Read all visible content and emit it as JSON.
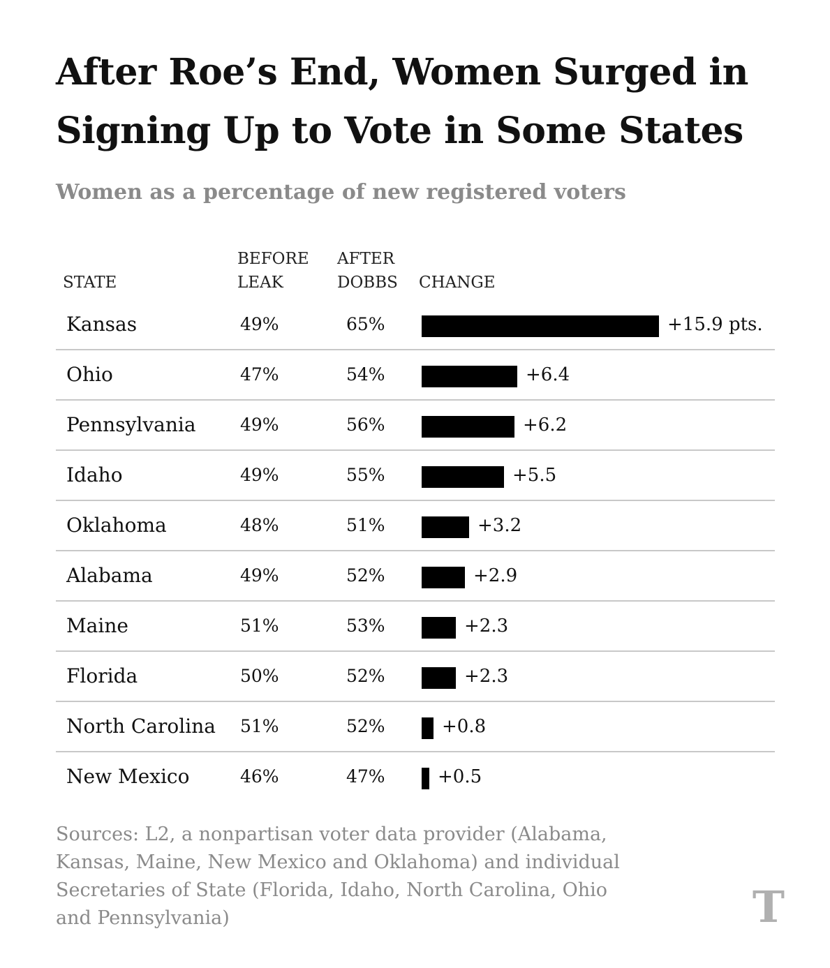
{
  "title_lines": [
    "After Roe’s End, Women Surged in",
    "Signing Up to Vote in Some States"
  ],
  "subtitle": "Women as a percentage of new registered voters",
  "headers": {
    "state": "STATE",
    "before": [
      "BEFORE",
      "LEAK"
    ],
    "after": [
      "AFTER",
      "DOBBS"
    ],
    "change": "CHANGE"
  },
  "chart_data": {
    "type": "table",
    "title": "After Roe’s End, Women Surged in Signing Up to Vote in Some States",
    "subtitle": "Women as a percentage of new registered voters",
    "columns": [
      "STATE",
      "BEFORE LEAK",
      "AFTER DOBBS",
      "CHANGE"
    ],
    "change_unit": "pts.",
    "rows": [
      {
        "state": "Kansas",
        "before": "49%",
        "after": "65%",
        "change": 15.9,
        "change_label": "+15.9 pts."
      },
      {
        "state": "Ohio",
        "before": "47%",
        "after": "54%",
        "change": 6.4,
        "change_label": "+6.4"
      },
      {
        "state": "Pennsylvania",
        "before": "49%",
        "after": "56%",
        "change": 6.2,
        "change_label": "+6.2"
      },
      {
        "state": "Idaho",
        "before": "49%",
        "after": "55%",
        "change": 5.5,
        "change_label": "+5.5"
      },
      {
        "state": "Oklahoma",
        "before": "48%",
        "after": "51%",
        "change": 3.2,
        "change_label": "+3.2"
      },
      {
        "state": "Alabama",
        "before": "49%",
        "after": "52%",
        "change": 2.9,
        "change_label": "+2.9"
      },
      {
        "state": "Maine",
        "before": "51%",
        "after": "53%",
        "change": 2.3,
        "change_label": "+2.3"
      },
      {
        "state": "Florida",
        "before": "50%",
        "after": "52%",
        "change": 2.3,
        "change_label": "+2.3"
      },
      {
        "state": "North Carolina",
        "before": "51%",
        "after": "52%",
        "change": 0.8,
        "change_label": "+0.8"
      },
      {
        "state": "New Mexico",
        "before": "46%",
        "after": "47%",
        "change": 0.5,
        "change_label": "+0.5"
      }
    ],
    "bar_color": "#000000",
    "change_axis_max": 15.9
  },
  "source_lines": [
    "Sources: L2, a nonpartisan voter data provider (Alabama,",
    "Kansas, Maine, New Mexico and Oklahoma) and individual",
    "Secretaries of State (Florida, Idaho, North Carolina, Ohio",
    "and Pennsylvania)"
  ],
  "logo": "T"
}
